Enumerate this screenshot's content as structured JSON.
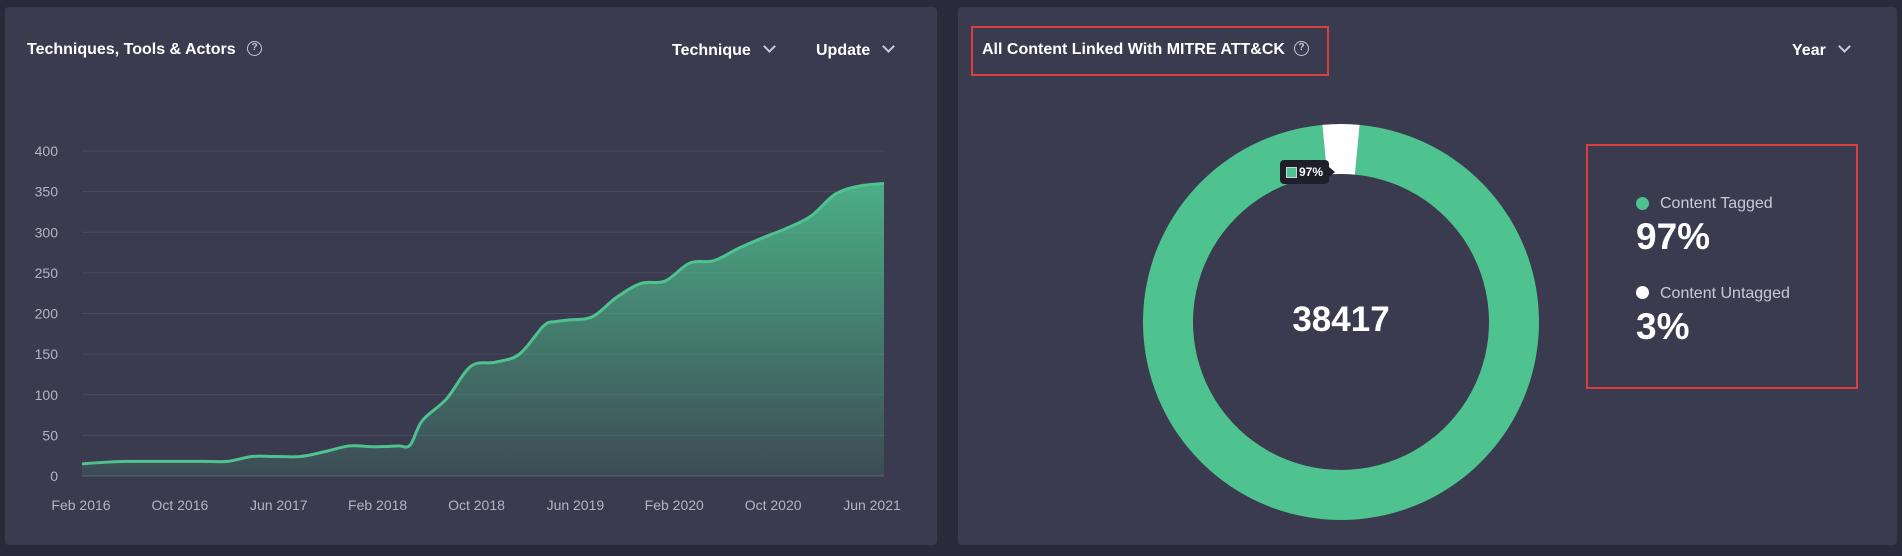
{
  "left_panel": {
    "title": "Techniques, Tools & Actors",
    "help_icon": "question-circle-icon",
    "dropdown_technique": "Technique",
    "dropdown_update": "Update"
  },
  "right_panel": {
    "title": "All Content Linked With MITRE ATT&CK",
    "help_icon": "question-circle-icon",
    "dropdown_year": "Year",
    "total": "38417",
    "tooltip": "97%",
    "legend": [
      {
        "label": "Content Tagged",
        "value": "97%",
        "color": "#4ec28f"
      },
      {
        "label": "Content Untagged",
        "value": "3%",
        "color": "#ffffff"
      }
    ]
  },
  "colors": {
    "panel_bg": "#3a3b4e",
    "page_bg": "#2a2b3a",
    "accent": "#4ec28f",
    "highlight": "#d9403f"
  },
  "chart_data": [
    {
      "type": "area",
      "x_tick_labels": [
        "Feb 2016",
        "Oct 2016",
        "Jun 2017",
        "Feb 2018",
        "Oct 2018",
        "Jun 2019",
        "Feb 2020",
        "Oct 2020",
        "Jun 2021"
      ],
      "y_ticks": [
        0,
        50,
        100,
        150,
        200,
        250,
        300,
        350,
        400
      ],
      "ylim": [
        0,
        400
      ],
      "grid": true,
      "series": [
        {
          "color": "#4ec28f",
          "x": [
            "2016-02",
            "2016-04",
            "2016-06",
            "2016-08",
            "2016-10",
            "2016-12",
            "2017-02",
            "2017-04",
            "2017-06",
            "2017-08",
            "2017-10",
            "2017-12",
            "2018-02",
            "2018-04",
            "2018-05",
            "2018-06",
            "2018-08",
            "2018-10",
            "2018-12",
            "2019-02",
            "2019-04",
            "2019-05",
            "2019-06",
            "2019-08",
            "2019-10",
            "2019-12",
            "2020-02",
            "2020-04",
            "2020-06",
            "2020-08",
            "2020-10",
            "2020-12",
            "2021-02",
            "2021-04",
            "2021-06",
            "2021-08"
          ],
          "values": [
            15,
            17,
            18,
            18,
            18,
            18,
            18,
            24,
            24,
            24,
            30,
            37,
            36,
            37,
            38,
            68,
            95,
            135,
            140,
            150,
            185,
            190,
            192,
            196,
            220,
            237,
            240,
            262,
            265,
            280,
            293,
            305,
            320,
            347,
            357,
            360
          ]
        }
      ]
    },
    {
      "type": "pie",
      "donut": true,
      "categories": [
        "Content Tagged",
        "Content Untagged"
      ],
      "values": [
        97,
        3
      ],
      "colors": [
        "#4ec28f",
        "#ffffff"
      ],
      "center_label": "38417"
    }
  ]
}
